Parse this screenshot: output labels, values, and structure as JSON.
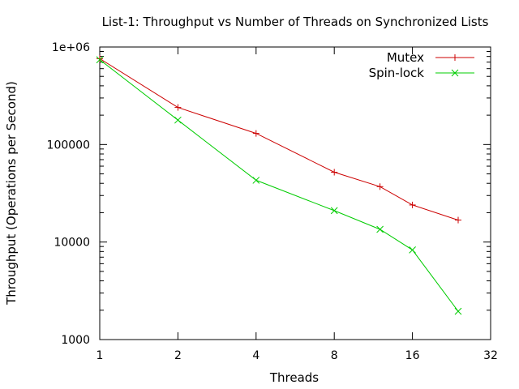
{
  "chart_data": {
    "type": "line",
    "title": "List-1: Throughput vs Number of Threads on Synchronized Lists",
    "xlabel": "Threads",
    "ylabel": "Throughput (Operations per Second)",
    "x_scale": "log2",
    "y_scale": "log10",
    "xlim": [
      1,
      32
    ],
    "ylim": [
      1000,
      1000000
    ],
    "x_ticks": [
      1,
      2,
      4,
      8,
      16,
      32
    ],
    "x_tick_labels": [
      "1",
      "2",
      "4",
      "8",
      "16",
      "32"
    ],
    "y_ticks": [
      1000,
      10000,
      100000,
      1000000
    ],
    "y_tick_labels": [
      "1000",
      "10000",
      "100000",
      "1e+06"
    ],
    "legend_position": "top-right",
    "series": [
      {
        "name": "Mutex",
        "color": "#cc0000",
        "marker": "plus",
        "x": [
          1,
          2,
          4,
          8,
          12,
          16,
          24
        ],
        "y": [
          760000,
          240000,
          130000,
          52000,
          37000,
          24000,
          16800
        ]
      },
      {
        "name": "Spin-lock",
        "color": "#00cc00",
        "marker": "cross",
        "x": [
          1,
          2,
          4,
          8,
          12,
          16,
          24
        ],
        "y": [
          740000,
          178000,
          43000,
          21000,
          13500,
          8300,
          1950
        ]
      }
    ]
  }
}
